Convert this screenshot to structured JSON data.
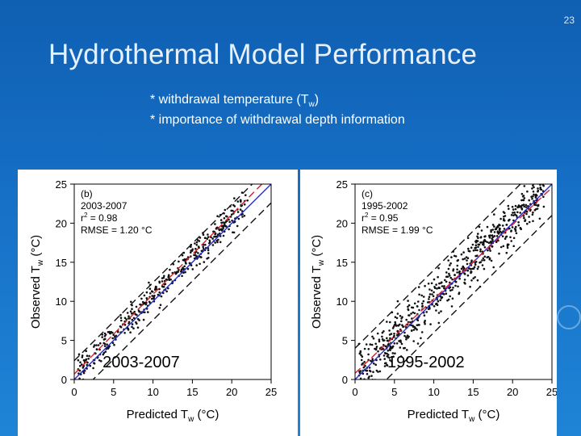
{
  "slide": {
    "number": "23",
    "title": "Hydrothermal Model Performance",
    "bullets": [
      {
        "prefix": "* withdrawal temperature (T",
        "sub": "w",
        "suffix": ")"
      },
      {
        "prefix": "* importance of withdrawal depth information",
        "sub": "",
        "suffix": ""
      }
    ]
  },
  "chart_data": [
    {
      "type": "scatter",
      "panel_label": "(b)",
      "period": "2003-2007",
      "r2_label": "r",
      "r2_value": " = 0.98",
      "rmse": "RMSE = 1.20 °C",
      "overlay_label": "2003-2007",
      "xlabel_main": "Predicted T",
      "xlabel_sub": "w",
      "xlabel_unit": " (°C)",
      "ylabel_main": "Observed T",
      "ylabel_sub": "w",
      "ylabel_unit": " (°C)",
      "xlim": [
        0,
        25
      ],
      "ylim": [
        0,
        25
      ],
      "xticks": [
        0,
        5,
        10,
        15,
        20,
        25
      ],
      "yticks": [
        0,
        5,
        10,
        15,
        20,
        25
      ],
      "lines": [
        {
          "name": "1:1",
          "color": "#2a2ad0",
          "dash": "solid",
          "slope": 1.0,
          "intercept": 0.0
        },
        {
          "name": "fit",
          "color": "#d8202a",
          "dash": "dashed",
          "slope": 1.02,
          "intercept": 0.7
        },
        {
          "name": "upper",
          "color": "#111111",
          "dash": "dashed",
          "slope": 1.0,
          "intercept": 2.4
        },
        {
          "name": "lower",
          "color": "#111111",
          "dash": "dashed",
          "slope": 1.0,
          "intercept": -2.4
        }
      ],
      "point_cloud": {
        "x_min": 0.5,
        "x_max": 22,
        "spread": 1.2,
        "offset": 0.6,
        "count": 420,
        "seed": 7
      }
    },
    {
      "type": "scatter",
      "panel_label": "(c)",
      "period": "1995-2002",
      "r2_label": "r",
      "r2_value": " = 0.95",
      "rmse": "RMSE = 1.99 °C",
      "overlay_label": "1995-2002",
      "xlabel_main": "Predicted T",
      "xlabel_sub": "w",
      "xlabel_unit": " (°C)",
      "ylabel_main": "Observed T",
      "ylabel_sub": "w",
      "ylabel_unit": " (°C)",
      "xlim": [
        0,
        25
      ],
      "ylim": [
        0,
        25
      ],
      "xticks": [
        0,
        5,
        10,
        15,
        20,
        25
      ],
      "yticks": [
        0,
        5,
        10,
        15,
        20,
        25
      ],
      "lines": [
        {
          "name": "1:1",
          "color": "#2a2ad0",
          "dash": "solid",
          "slope": 1.0,
          "intercept": 0.0
        },
        {
          "name": "fit",
          "color": "#d8202a",
          "dash": "dashed",
          "slope": 0.95,
          "intercept": 0.8
        },
        {
          "name": "upper",
          "color": "#111111",
          "dash": "dashed",
          "slope": 1.0,
          "intercept": 4.0
        },
        {
          "name": "lower",
          "color": "#111111",
          "dash": "dashed",
          "slope": 1.0,
          "intercept": -4.0
        }
      ],
      "point_cloud": {
        "x_min": 0.5,
        "x_max": 24,
        "spread": 2.2,
        "offset": 0.3,
        "count": 700,
        "seed": 13
      }
    }
  ]
}
